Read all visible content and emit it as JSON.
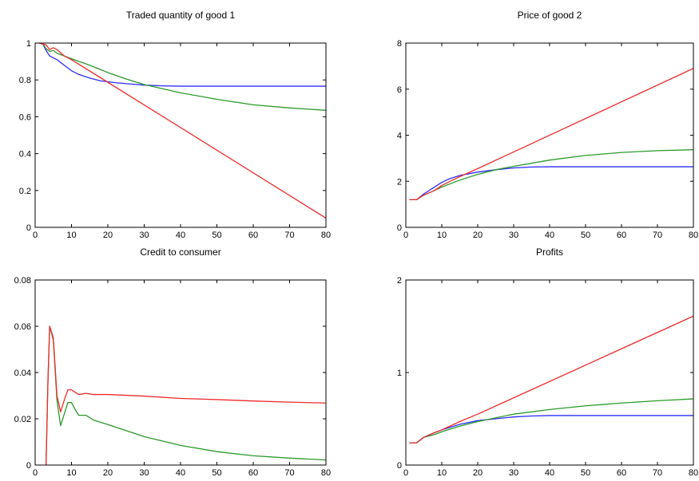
{
  "chart_data": [
    {
      "type": "line",
      "title": "Traded quantity of good 1",
      "xlabel": "",
      "ylabel": "",
      "xlim": [
        0,
        80
      ],
      "ylim": [
        0,
        1
      ],
      "xticks": [
        0,
        10,
        20,
        30,
        40,
        50,
        60,
        70,
        80
      ],
      "yticks": [
        0,
        0.2,
        0.4,
        0.6,
        0.8,
        1
      ],
      "ytick_labels": [
        "0",
        "0.2",
        "0.4",
        "0.6",
        "0.8",
        "1"
      ],
      "grid": false,
      "series": [
        {
          "color": "#2b2bff",
          "points": [
            [
              2,
              1.0
            ],
            [
              3,
              0.96
            ],
            [
              4,
              0.93
            ],
            [
              6,
              0.91
            ],
            [
              8,
              0.88
            ],
            [
              10,
              0.85
            ],
            [
              12,
              0.83
            ],
            [
              15,
              0.81
            ],
            [
              18,
              0.795
            ],
            [
              22,
              0.785
            ],
            [
              26,
              0.778
            ],
            [
              30,
              0.772
            ],
            [
              35,
              0.768
            ],
            [
              40,
              0.766
            ],
            [
              80,
              0.766
            ]
          ]
        },
        {
          "color": "#2a9a2a",
          "points": [
            [
              2,
              1.0
            ],
            [
              3,
              0.97
            ],
            [
              4,
              0.955
            ],
            [
              5,
              0.96
            ],
            [
              6,
              0.945
            ],
            [
              8,
              0.93
            ],
            [
              10,
              0.915
            ],
            [
              15,
              0.88
            ],
            [
              20,
              0.84
            ],
            [
              25,
              0.805
            ],
            [
              30,
              0.775
            ],
            [
              40,
              0.73
            ],
            [
              50,
              0.695
            ],
            [
              60,
              0.665
            ],
            [
              70,
              0.648
            ],
            [
              80,
              0.635
            ]
          ]
        },
        {
          "color": "#ee2a2a",
          "points": [
            [
              1,
              1.0
            ],
            [
              3,
              0.99
            ],
            [
              4,
              0.965
            ],
            [
              5,
              0.975
            ],
            [
              6,
              0.965
            ],
            [
              8,
              0.93
            ],
            [
              10,
              0.91
            ],
            [
              80,
              0.05
            ]
          ]
        }
      ]
    },
    {
      "type": "line",
      "title": "Price of good 2",
      "xlabel": "",
      "ylabel": "",
      "xlim": [
        0,
        80
      ],
      "ylim": [
        0,
        8
      ],
      "xticks": [
        0,
        10,
        20,
        30,
        40,
        50,
        60,
        70,
        80
      ],
      "yticks": [
        0,
        2,
        4,
        6,
        8
      ],
      "ytick_labels": [
        "0",
        "2",
        "4",
        "6",
        "8"
      ],
      "grid": false,
      "series": [
        {
          "color": "#2b2bff",
          "points": [
            [
              1,
              1.2
            ],
            [
              3,
              1.2
            ],
            [
              5,
              1.45
            ],
            [
              8,
              1.75
            ],
            [
              10,
              1.95
            ],
            [
              12,
              2.1
            ],
            [
              15,
              2.25
            ],
            [
              20,
              2.4
            ],
            [
              25,
              2.5
            ],
            [
              30,
              2.58
            ],
            [
              35,
              2.62
            ],
            [
              40,
              2.63
            ],
            [
              80,
              2.63
            ]
          ]
        },
        {
          "color": "#2a9a2a",
          "points": [
            [
              1,
              1.2
            ],
            [
              3,
              1.2
            ],
            [
              5,
              1.4
            ],
            [
              8,
              1.6
            ],
            [
              10,
              1.75
            ],
            [
              15,
              2.05
            ],
            [
              20,
              2.3
            ],
            [
              25,
              2.5
            ],
            [
              30,
              2.65
            ],
            [
              40,
              2.92
            ],
            [
              50,
              3.12
            ],
            [
              60,
              3.25
            ],
            [
              70,
              3.33
            ],
            [
              80,
              3.37
            ]
          ]
        },
        {
          "color": "#ee2a2a",
          "points": [
            [
              1,
              1.2
            ],
            [
              3,
              1.2
            ],
            [
              5,
              1.4
            ],
            [
              8,
              1.6
            ],
            [
              10,
              1.82
            ],
            [
              15,
              2.2
            ],
            [
              20,
              2.55
            ],
            [
              80,
              6.9
            ]
          ]
        }
      ]
    },
    {
      "type": "line",
      "title": "Credit to consumer",
      "xlabel": "",
      "ylabel": "",
      "xlim": [
        0,
        80
      ],
      "ylim": [
        0,
        0.08
      ],
      "xticks": [
        0,
        10,
        20,
        30,
        40,
        50,
        60,
        70,
        80
      ],
      "yticks": [
        0,
        0.02,
        0.04,
        0.06,
        0.08
      ],
      "ytick_labels": [
        "0",
        "0.02",
        "0.04",
        "0.06",
        "0.08"
      ],
      "grid": false,
      "series": [
        {
          "color": "#2a9a2a",
          "points": [
            [
              3,
              0.0
            ],
            [
              3.5,
              0.035
            ],
            [
              4,
              0.06
            ],
            [
              5,
              0.054
            ],
            [
              6,
              0.028
            ],
            [
              7,
              0.017
            ],
            [
              8,
              0.022
            ],
            [
              9,
              0.027
            ],
            [
              10,
              0.027
            ],
            [
              11,
              0.024
            ],
            [
              12,
              0.0215
            ],
            [
              14,
              0.0215
            ],
            [
              16,
              0.0195
            ],
            [
              20,
              0.0175
            ],
            [
              30,
              0.0123
            ],
            [
              40,
              0.0085
            ],
            [
              50,
              0.0058
            ],
            [
              60,
              0.004
            ],
            [
              70,
              0.003
            ],
            [
              80,
              0.0022
            ]
          ]
        },
        {
          "color": "#ee2a2a",
          "points": [
            [
              3,
              0.0
            ],
            [
              3.5,
              0.035
            ],
            [
              4,
              0.06
            ],
            [
              5,
              0.055
            ],
            [
              6,
              0.03
            ],
            [
              7,
              0.023
            ],
            [
              8,
              0.028
            ],
            [
              9,
              0.0325
            ],
            [
              10,
              0.0325
            ],
            [
              11,
              0.0315
            ],
            [
              12,
              0.0305
            ],
            [
              14,
              0.031
            ],
            [
              16,
              0.0305
            ],
            [
              20,
              0.0305
            ],
            [
              30,
              0.0298
            ],
            [
              40,
              0.0288
            ],
            [
              50,
              0.0283
            ],
            [
              60,
              0.0277
            ],
            [
              70,
              0.0272
            ],
            [
              80,
              0.0268
            ]
          ]
        }
      ]
    },
    {
      "type": "line",
      "title": "Profits",
      "xlabel": "",
      "ylabel": "",
      "xlim": [
        0,
        80
      ],
      "ylim": [
        0,
        2
      ],
      "xticks": [
        0,
        10,
        20,
        30,
        40,
        50,
        60,
        70,
        80
      ],
      "yticks": [
        0,
        1,
        2
      ],
      "ytick_labels": [
        "0",
        "1",
        "2"
      ],
      "grid": false,
      "series": [
        {
          "color": "#2b2bff",
          "points": [
            [
              1,
              0.24
            ],
            [
              3,
              0.24
            ],
            [
              5,
              0.3
            ],
            [
              8,
              0.35
            ],
            [
              10,
              0.38
            ],
            [
              15,
              0.44
            ],
            [
              20,
              0.48
            ],
            [
              25,
              0.5
            ],
            [
              30,
              0.52
            ],
            [
              35,
              0.53
            ],
            [
              40,
              0.535
            ],
            [
              80,
              0.535
            ]
          ]
        },
        {
          "color": "#2a9a2a",
          "points": [
            [
              1,
              0.24
            ],
            [
              3,
              0.24
            ],
            [
              5,
              0.3
            ],
            [
              8,
              0.33
            ],
            [
              10,
              0.36
            ],
            [
              15,
              0.42
            ],
            [
              20,
              0.47
            ],
            [
              25,
              0.51
            ],
            [
              30,
              0.55
            ],
            [
              40,
              0.6
            ],
            [
              50,
              0.64
            ],
            [
              60,
              0.67
            ],
            [
              70,
              0.695
            ],
            [
              80,
              0.715
            ]
          ]
        },
        {
          "color": "#ee2a2a",
          "points": [
            [
              1,
              0.24
            ],
            [
              3,
              0.24
            ],
            [
              5,
              0.3
            ],
            [
              8,
              0.35
            ],
            [
              10,
              0.38
            ],
            [
              15,
              0.47
            ],
            [
              20,
              0.55
            ],
            [
              80,
              1.61
            ]
          ]
        }
      ]
    }
  ]
}
